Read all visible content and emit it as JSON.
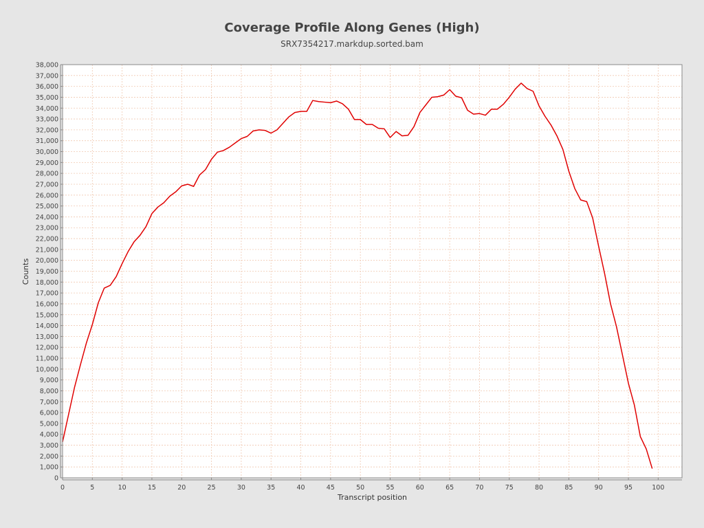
{
  "colors": {
    "background": "#e6e6e6",
    "plot_background": "#ffffff",
    "grid": "#f0c8b0",
    "line": "#e00000",
    "axis": "#888888",
    "text": "#444444"
  },
  "chart_data": {
    "type": "line",
    "title": "Coverage Profile Along Genes (High)",
    "subtitle": "SRX7354217.markdup.sorted.bam",
    "xlabel": "Transcript position",
    "ylabel": "Counts",
    "xlim": [
      0,
      104
    ],
    "ylim": [
      0,
      38000
    ],
    "x_ticks": [
      0,
      5,
      10,
      15,
      20,
      25,
      30,
      35,
      40,
      45,
      50,
      55,
      60,
      65,
      70,
      75,
      80,
      85,
      90,
      95,
      100
    ],
    "x_tick_labels": [
      "0",
      "5",
      "10",
      "15",
      "20",
      "25",
      "30",
      "35",
      "40",
      "45",
      "50",
      "55",
      "60",
      "65",
      "70",
      "75",
      "80",
      "85",
      "90",
      "95",
      "100"
    ],
    "y_ticks": [
      0,
      1000,
      2000,
      3000,
      4000,
      5000,
      6000,
      7000,
      8000,
      9000,
      10000,
      11000,
      12000,
      13000,
      14000,
      15000,
      16000,
      17000,
      18000,
      19000,
      20000,
      21000,
      22000,
      23000,
      24000,
      25000,
      26000,
      27000,
      28000,
      29000,
      30000,
      31000,
      32000,
      33000,
      34000,
      35000,
      36000,
      37000,
      38000
    ],
    "y_tick_labels": [
      "0",
      "1,000",
      "2,000",
      "3,000",
      "4,000",
      "5,000",
      "6,000",
      "7,000",
      "8,000",
      "9,000",
      "10,000",
      "11,000",
      "12,000",
      "13,000",
      "14,000",
      "15,000",
      "16,000",
      "17,000",
      "18,000",
      "19,000",
      "20,000",
      "21,000",
      "22,000",
      "23,000",
      "24,000",
      "25,000",
      "26,000",
      "27,000",
      "28,000",
      "29,000",
      "30,000",
      "31,000",
      "32,000",
      "33,000",
      "34,000",
      "35,000",
      "36,000",
      "37,000",
      "38,000"
    ],
    "grid": true,
    "series": [
      {
        "x": [
          0,
          1,
          2,
          3,
          4,
          5,
          6,
          7,
          8,
          9,
          10,
          11,
          12,
          13,
          14,
          15,
          16,
          17,
          18,
          19,
          20,
          21,
          22,
          23,
          24,
          25,
          26,
          27,
          28,
          29,
          30,
          31,
          32,
          33,
          34,
          35,
          36,
          37,
          38,
          39,
          40,
          41,
          42,
          43,
          44,
          45,
          46,
          47,
          48,
          49,
          50,
          51,
          52,
          53,
          54,
          55,
          56,
          57,
          58,
          59,
          60,
          61,
          62,
          63,
          64,
          65,
          66,
          67,
          68,
          69,
          70,
          71,
          72,
          73,
          74,
          75,
          76,
          77,
          78,
          79,
          80,
          81,
          82,
          83,
          84,
          85,
          86,
          87,
          88,
          89,
          90,
          91,
          92,
          93,
          94,
          95,
          96,
          97,
          98,
          99
        ],
        "values": [
          3300,
          5800,
          8300,
          10400,
          12400,
          14100,
          16100,
          17450,
          17700,
          18500,
          19700,
          20800,
          21700,
          22300,
          23100,
          24300,
          24900,
          25300,
          25900,
          26300,
          26850,
          27000,
          26800,
          27850,
          28350,
          29300,
          29950,
          30100,
          30400,
          30800,
          31200,
          31400,
          31900,
          32000,
          31950,
          31700,
          32000,
          32600,
          33200,
          33600,
          33700,
          33700,
          34700,
          34600,
          34550,
          34500,
          34650,
          34400,
          33900,
          32950,
          32950,
          32500,
          32500,
          32150,
          32100,
          31300,
          31850,
          31450,
          31500,
          32300,
          33600,
          34300,
          35000,
          35050,
          35200,
          35700,
          35100,
          34950,
          33800,
          33450,
          33500,
          33350,
          33900,
          33900,
          34350,
          35000,
          35750,
          36300,
          35800,
          35550,
          34200,
          33250,
          32450,
          31450,
          30200,
          28200,
          26600,
          25550,
          25400,
          23900,
          21300,
          18800,
          16000,
          13900,
          11300,
          8700,
          6700,
          3800,
          2650,
          850
        ]
      }
    ]
  }
}
